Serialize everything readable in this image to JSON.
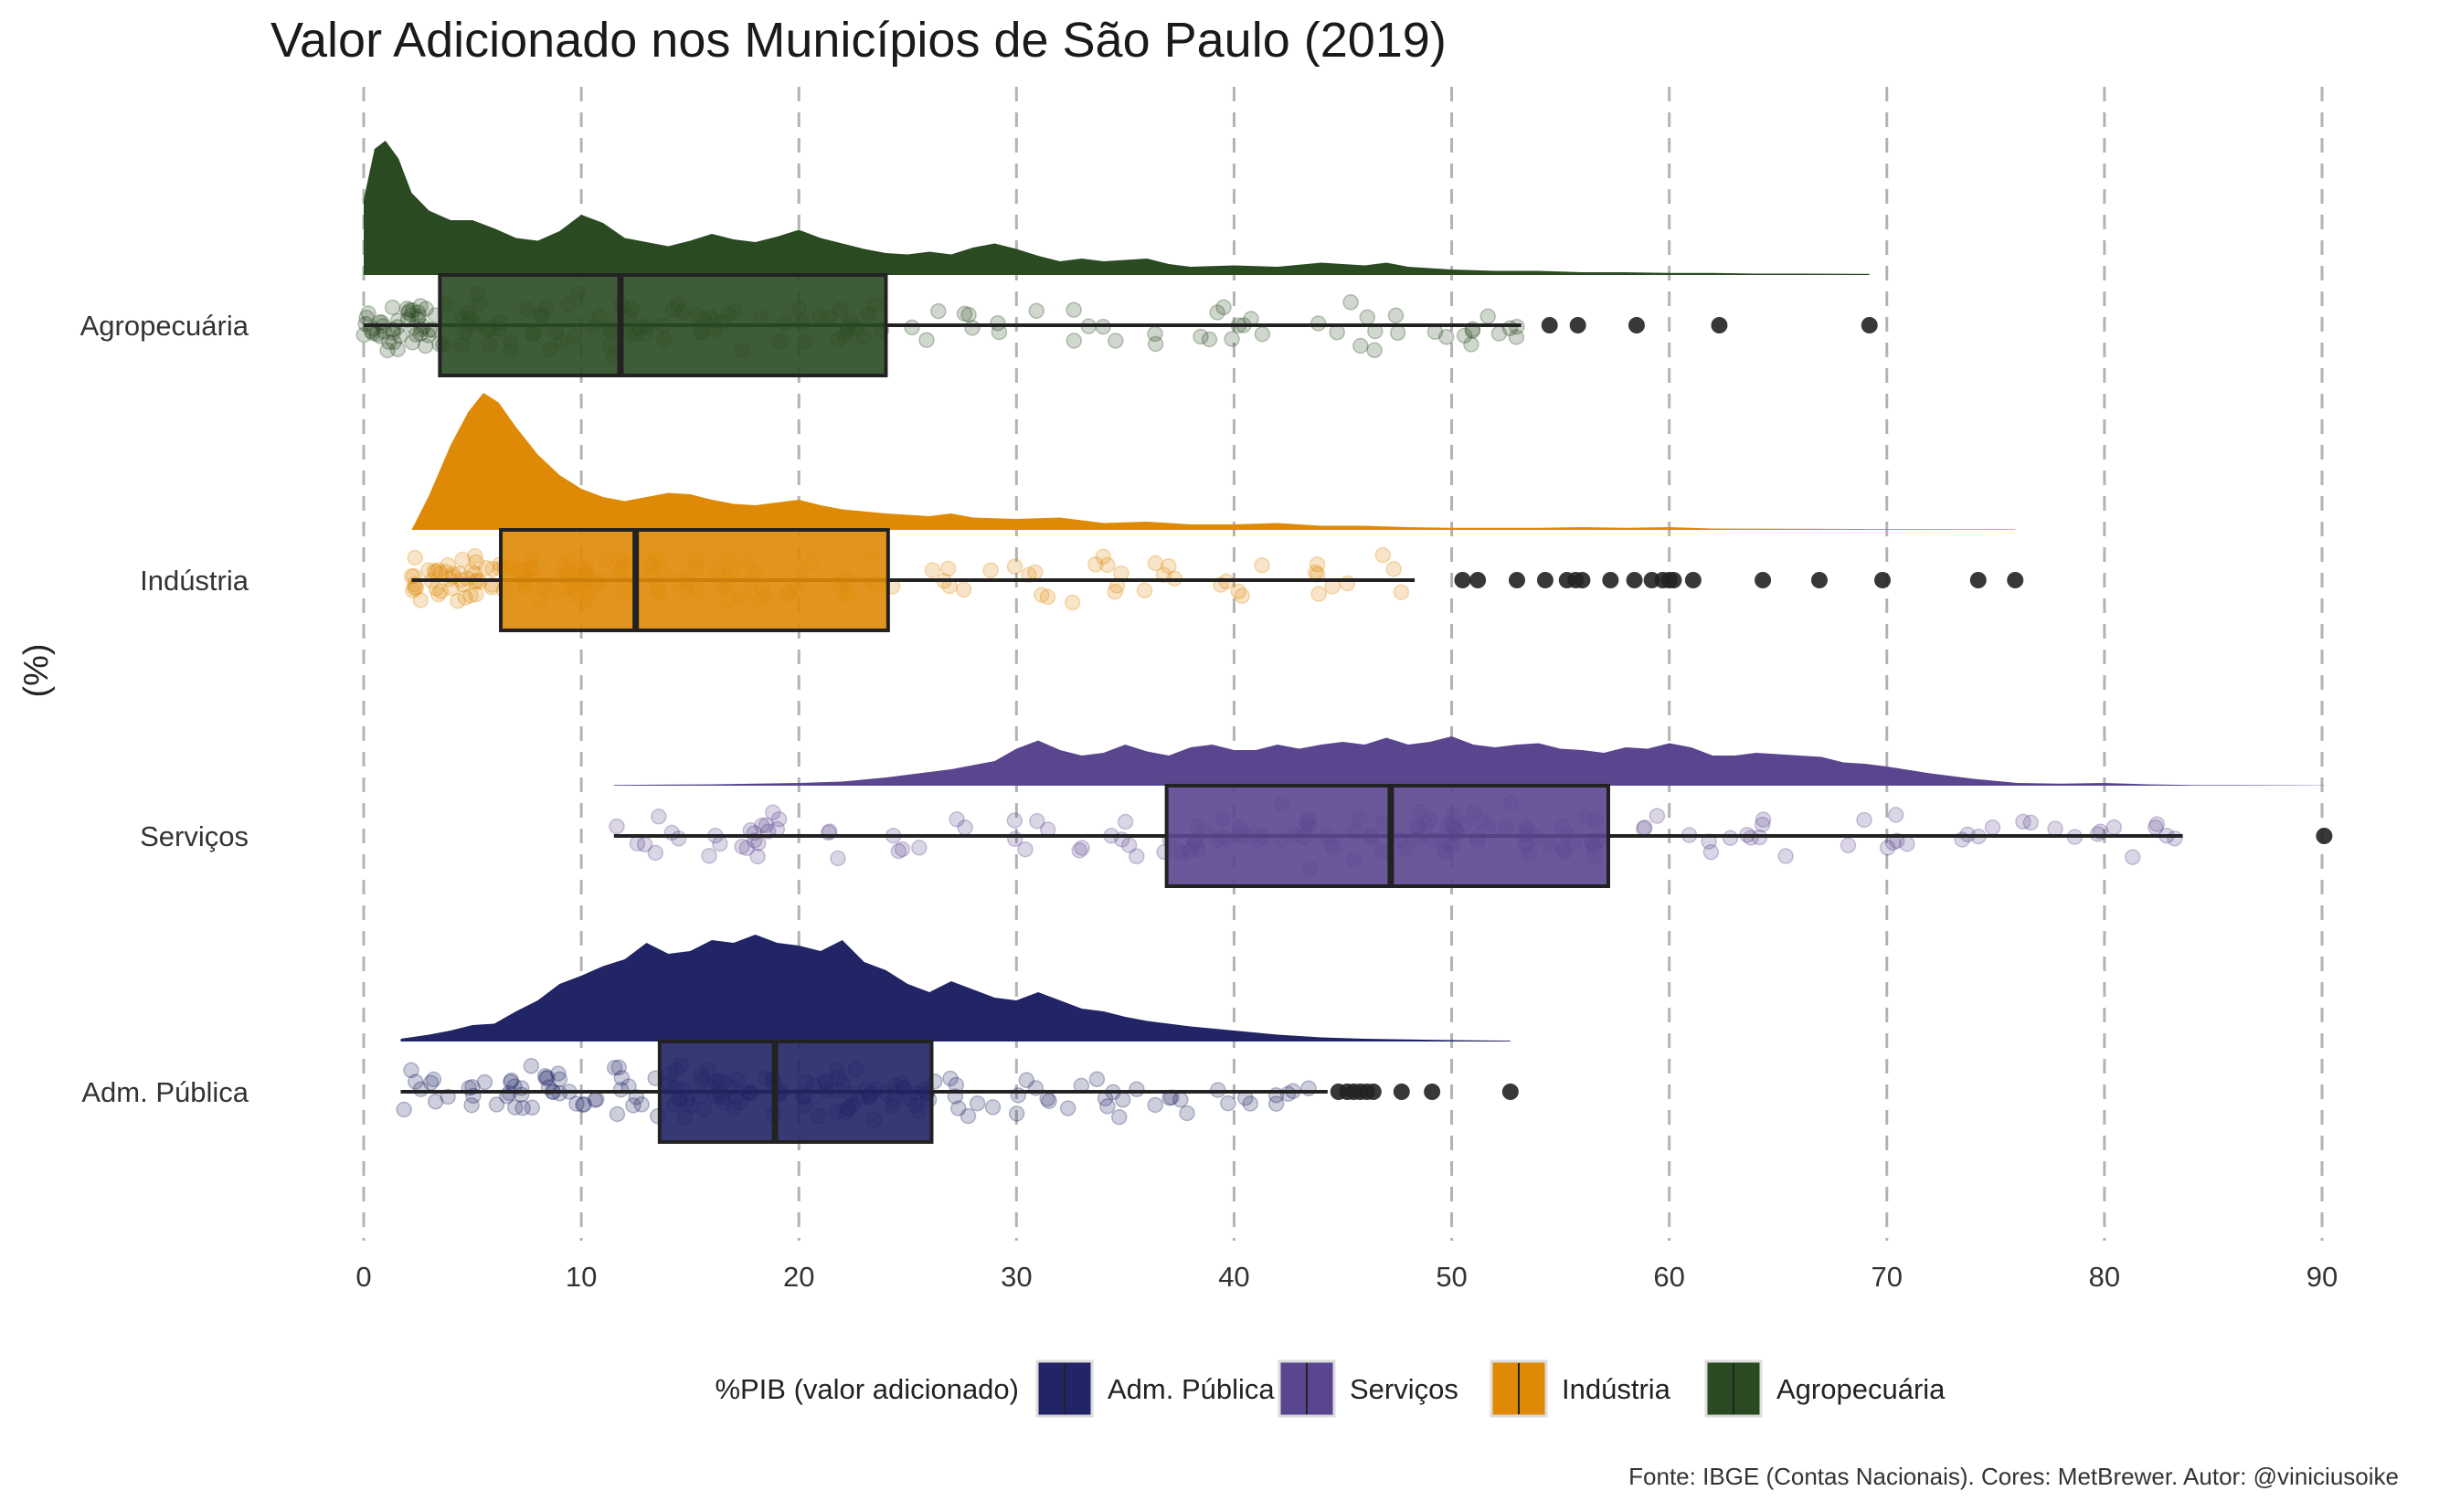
{
  "chart_data": {
    "type": "raincloud",
    "title": "Valor Adicionado nos Municípios de São Paulo (2019)",
    "ylabel": "(%)",
    "xlabel": "",
    "caption": "Fonte: IBGE (Contas Nacionais). Cores: MetBrewer. Autor: @viniciusoike",
    "xlim": [
      0,
      90
    ],
    "x_ticks": [
      0,
      10,
      20,
      30,
      40,
      50,
      60,
      70,
      80,
      90
    ],
    "grid": "vertical dashed at major ticks",
    "legend": {
      "title": "%PIB (valor adicionado)",
      "position": "bottom",
      "entries": [
        "Adm. Pública",
        "Serviços",
        "Indústria",
        "Agropecuária"
      ]
    },
    "categories": [
      "Agropecuária",
      "Indústria",
      "Serviços",
      "Adm. Pública"
    ],
    "series": [
      {
        "name": "Agropecuária",
        "color": "#2a4a22",
        "box": {
          "lower_whisker": 0,
          "q1": 3.5,
          "median": 11.8,
          "q3": 24,
          "upper_whisker": 53.2
        },
        "outliers": [
          54.5,
          55.8,
          58.5,
          62.3,
          69.2
        ],
        "density_range": [
          0,
          69.2
        ],
        "density": [
          [
            0,
            0.55
          ],
          [
            0.5,
            0.92
          ],
          [
            1,
            0.98
          ],
          [
            1.6,
            0.85
          ],
          [
            2.2,
            0.6
          ],
          [
            3,
            0.47
          ],
          [
            4,
            0.4
          ],
          [
            5,
            0.4
          ],
          [
            6,
            0.34
          ],
          [
            7,
            0.27
          ],
          [
            8,
            0.25
          ],
          [
            9,
            0.32
          ],
          [
            10,
            0.44
          ],
          [
            11,
            0.38
          ],
          [
            12,
            0.27
          ],
          [
            13,
            0.24
          ],
          [
            14,
            0.21
          ],
          [
            15,
            0.25
          ],
          [
            16,
            0.3
          ],
          [
            17,
            0.26
          ],
          [
            18,
            0.24
          ],
          [
            19,
            0.28
          ],
          [
            20,
            0.33
          ],
          [
            21,
            0.27
          ],
          [
            22,
            0.23
          ],
          [
            23,
            0.19
          ],
          [
            24,
            0.16
          ],
          [
            25,
            0.15
          ],
          [
            26,
            0.17
          ],
          [
            27,
            0.15
          ],
          [
            28,
            0.2
          ],
          [
            29,
            0.23
          ],
          [
            30,
            0.19
          ],
          [
            31,
            0.14
          ],
          [
            32,
            0.1
          ],
          [
            33,
            0.12
          ],
          [
            34,
            0.1
          ],
          [
            36,
            0.12
          ],
          [
            37,
            0.08
          ],
          [
            38,
            0.06
          ],
          [
            40,
            0.07
          ],
          [
            42,
            0.06
          ],
          [
            44,
            0.09
          ],
          [
            46,
            0.07
          ],
          [
            47,
            0.09
          ],
          [
            48,
            0.06
          ],
          [
            50,
            0.04
          ],
          [
            52,
            0.03
          ],
          [
            54,
            0.03
          ],
          [
            56,
            0.02
          ],
          [
            58,
            0.02
          ],
          [
            60,
            0.015
          ],
          [
            62,
            0.015
          ],
          [
            64,
            0.01
          ],
          [
            66,
            0.01
          ],
          [
            69.2,
            0.008
          ]
        ]
      },
      {
        "name": "Indústria",
        "color": "#de8a07",
        "box": {
          "lower_whisker": 2.2,
          "q1": 6.3,
          "median": 12.5,
          "q3": 24.1,
          "upper_whisker": 48.3
        },
        "outliers": [
          50.5,
          51.2,
          53,
          54.3,
          55.3,
          55.7,
          56,
          57.3,
          58.4,
          59.2,
          59.7,
          60,
          60.2,
          61.1,
          64.3,
          66.9,
          69.8,
          74.2,
          75.9
        ],
        "density_range": [
          2.2,
          75.9
        ],
        "density": [
          [
            2.2,
            0
          ],
          [
            3,
            0.25
          ],
          [
            4,
            0.62
          ],
          [
            4.8,
            0.86
          ],
          [
            5.5,
            1.0
          ],
          [
            6.2,
            0.93
          ],
          [
            7,
            0.75
          ],
          [
            8,
            0.55
          ],
          [
            9,
            0.4
          ],
          [
            10,
            0.3
          ],
          [
            11,
            0.24
          ],
          [
            12,
            0.21
          ],
          [
            13,
            0.24
          ],
          [
            14,
            0.27
          ],
          [
            15,
            0.26
          ],
          [
            16,
            0.22
          ],
          [
            17,
            0.19
          ],
          [
            18,
            0.18
          ],
          [
            19,
            0.2
          ],
          [
            20,
            0.22
          ],
          [
            21,
            0.18
          ],
          [
            22,
            0.15
          ],
          [
            24,
            0.12
          ],
          [
            26,
            0.1
          ],
          [
            27,
            0.12
          ],
          [
            28,
            0.09
          ],
          [
            30,
            0.08
          ],
          [
            32,
            0.09
          ],
          [
            34,
            0.05
          ],
          [
            36,
            0.06
          ],
          [
            38,
            0.04
          ],
          [
            40,
            0.04
          ],
          [
            42,
            0.05
          ],
          [
            44,
            0.03
          ],
          [
            46,
            0.03
          ],
          [
            48,
            0.02
          ],
          [
            50,
            0.015
          ],
          [
            54,
            0.015
          ],
          [
            56,
            0.02
          ],
          [
            58,
            0.015
          ],
          [
            60,
            0.02
          ],
          [
            62,
            0.01
          ],
          [
            66,
            0.008
          ],
          [
            70,
            0.006
          ],
          [
            75.9,
            0.004
          ]
        ]
      },
      {
        "name": "Serviços",
        "color": "#5a468f",
        "box": {
          "lower_whisker": 11.5,
          "q1": 36.9,
          "median": 47.2,
          "q3": 57.2,
          "upper_whisker": 83.6
        },
        "outliers": [
          90.1
        ],
        "density_range": [
          11.5,
          90.1
        ],
        "density": [
          [
            11.5,
            0.005
          ],
          [
            14,
            0.008
          ],
          [
            16,
            0.01
          ],
          [
            18,
            0.015
          ],
          [
            20,
            0.02
          ],
          [
            22,
            0.03
          ],
          [
            24,
            0.06
          ],
          [
            26,
            0.1
          ],
          [
            27,
            0.12
          ],
          [
            28,
            0.15
          ],
          [
            29,
            0.18
          ],
          [
            30,
            0.27
          ],
          [
            31,
            0.33
          ],
          [
            32,
            0.26
          ],
          [
            33,
            0.22
          ],
          [
            34,
            0.24
          ],
          [
            35,
            0.3
          ],
          [
            36,
            0.25
          ],
          [
            37,
            0.22
          ],
          [
            38,
            0.28
          ],
          [
            39,
            0.3
          ],
          [
            40,
            0.26
          ],
          [
            41,
            0.26
          ],
          [
            42,
            0.3
          ],
          [
            43,
            0.27
          ],
          [
            44,
            0.3
          ],
          [
            45,
            0.32
          ],
          [
            46,
            0.3
          ],
          [
            47,
            0.35
          ],
          [
            48,
            0.3
          ],
          [
            49,
            0.32
          ],
          [
            50,
            0.36
          ],
          [
            51,
            0.3
          ],
          [
            52,
            0.28
          ],
          [
            53,
            0.3
          ],
          [
            54,
            0.31
          ],
          [
            55,
            0.27
          ],
          [
            56,
            0.26
          ],
          [
            57,
            0.24
          ],
          [
            58,
            0.28
          ],
          [
            59,
            0.27
          ],
          [
            60,
            0.31
          ],
          [
            61,
            0.28
          ],
          [
            62,
            0.22
          ],
          [
            63,
            0.22
          ],
          [
            64,
            0.24
          ],
          [
            65,
            0.23
          ],
          [
            66,
            0.22
          ],
          [
            67,
            0.21
          ],
          [
            68,
            0.17
          ],
          [
            69,
            0.16
          ],
          [
            70,
            0.14
          ],
          [
            72,
            0.09
          ],
          [
            74,
            0.05
          ],
          [
            76,
            0.02
          ],
          [
            78,
            0.015
          ],
          [
            80,
            0.02
          ],
          [
            82,
            0.01
          ],
          [
            84,
            0.005
          ],
          [
            86,
            0.004
          ],
          [
            88,
            0.003
          ],
          [
            90.1,
            0.002
          ]
        ]
      },
      {
        "name": "Adm. Pública",
        "color": "#212465",
        "box": {
          "lower_whisker": 1.7,
          "q1": 13.6,
          "median": 18.9,
          "q3": 26.1,
          "upper_whisker": 44.3
        },
        "outliers": [
          44.8,
          45.2,
          45.5,
          45.8,
          46.1,
          46.4,
          47.7,
          49.1,
          52.7
        ],
        "density_range": [
          1.7,
          52.7
        ],
        "density": [
          [
            1.7,
            0.02
          ],
          [
            3,
            0.05
          ],
          [
            4,
            0.08
          ],
          [
            5,
            0.12
          ],
          [
            6,
            0.13
          ],
          [
            7,
            0.22
          ],
          [
            8,
            0.3
          ],
          [
            9,
            0.42
          ],
          [
            10,
            0.48
          ],
          [
            11,
            0.55
          ],
          [
            12,
            0.6
          ],
          [
            13,
            0.72
          ],
          [
            14,
            0.64
          ],
          [
            15,
            0.66
          ],
          [
            16,
            0.74
          ],
          [
            17,
            0.72
          ],
          [
            18,
            0.78
          ],
          [
            19,
            0.72
          ],
          [
            20,
            0.7
          ],
          [
            21,
            0.66
          ],
          [
            22,
            0.74
          ],
          [
            23,
            0.58
          ],
          [
            24,
            0.52
          ],
          [
            25,
            0.42
          ],
          [
            26,
            0.36
          ],
          [
            27,
            0.44
          ],
          [
            28,
            0.38
          ],
          [
            29,
            0.32
          ],
          [
            30,
            0.3
          ],
          [
            31,
            0.36
          ],
          [
            32,
            0.3
          ],
          [
            33,
            0.24
          ],
          [
            34,
            0.22
          ],
          [
            35,
            0.18
          ],
          [
            36,
            0.15
          ],
          [
            38,
            0.11
          ],
          [
            40,
            0.08
          ],
          [
            42,
            0.05
          ],
          [
            44,
            0.03
          ],
          [
            46,
            0.02
          ],
          [
            48,
            0.015
          ],
          [
            50,
            0.01
          ],
          [
            52.7,
            0.006
          ]
        ]
      }
    ]
  }
}
